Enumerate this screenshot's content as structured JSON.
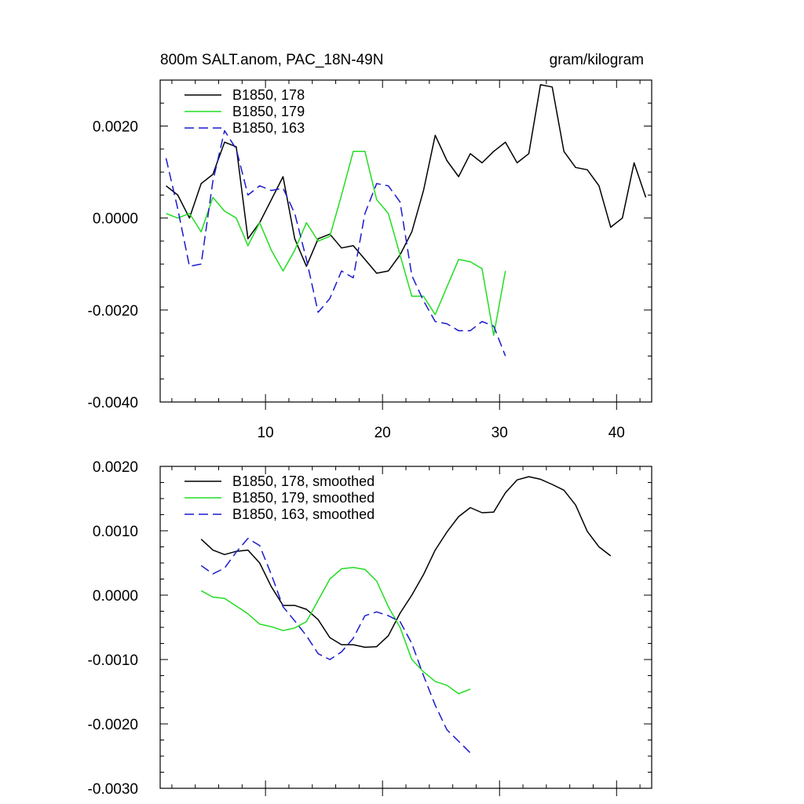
{
  "chart_data": [
    {
      "type": "line",
      "title": "800m SALT.anom, PAC_18N-49N",
      "units_label": "gram/kilogram",
      "xlim": [
        1,
        43
      ],
      "ylim": [
        -0.004,
        0.003
      ],
      "xticks": [
        10,
        20,
        30,
        40
      ],
      "yticks": [
        -0.004,
        -0.002,
        0.0,
        0.002
      ],
      "ytick_labels": [
        "-0.0040",
        "-0.0020",
        "0.0000",
        "0.0020"
      ],
      "xtick_labels": [
        "10",
        "20",
        "30",
        "40"
      ],
      "legend_position": "top-left",
      "series": [
        {
          "name": "B1850, 178",
          "color": "#000000",
          "dash": "solid",
          "x": [
            1.5,
            2.5,
            3.5,
            4.5,
            5.5,
            6.5,
            7.5,
            8.5,
            9.5,
            10.5,
            11.5,
            12.5,
            13.5,
            14.5,
            15.5,
            16.5,
            17.5,
            18.5,
            19.5,
            20.5,
            21.5,
            22.5,
            23.5,
            24.5,
            25.5,
            26.5,
            27.5,
            28.5,
            29.5,
            30.5,
            31.5,
            32.5,
            33.5,
            34.5,
            35.5,
            36.5,
            37.5,
            38.5,
            39.5,
            40.5,
            41.5,
            42.5
          ],
          "values": [
            0.0007,
            0.0005,
            0.0,
            0.00075,
            0.00095,
            0.00165,
            0.00155,
            -0.00045,
            -0.0001,
            0.0004,
            0.0009,
            -0.00045,
            -0.00105,
            -0.00045,
            -0.00035,
            -0.00065,
            -0.0006,
            -0.0009,
            -0.0012,
            -0.00115,
            -0.0008,
            -0.0003,
            0.0006,
            0.0018,
            0.00125,
            0.0009,
            0.0014,
            0.0012,
            0.00145,
            0.00165,
            0.0012,
            0.0014,
            0.0029,
            0.00285,
            0.00145,
            0.0011,
            0.00105,
            0.0007,
            -0.0002,
            0.0,
            0.0012,
            0.00045
          ]
        },
        {
          "name": "B1850, 179",
          "color": "#22dd22",
          "dash": "solid",
          "x": [
            1.5,
            2.5,
            3.5,
            4.5,
            5.5,
            6.5,
            7.5,
            8.5,
            9.5,
            10.5,
            11.5,
            12.5,
            13.5,
            14.5,
            15.5,
            16.5,
            17.5,
            18.5,
            19.5,
            20.5,
            21.5,
            22.5,
            23.5,
            24.5,
            25.5,
            26.5,
            27.5,
            28.5,
            29.5,
            30.5
          ],
          "values": [
            0.0001,
            0.0,
            0.0001,
            -0.0003,
            0.00045,
            0.00015,
            0.0,
            -0.0006,
            -0.0001,
            -0.0007,
            -0.00115,
            -0.0007,
            -0.0001,
            -0.0005,
            -0.0004,
            0.0005,
            0.00145,
            0.00145,
            0.0004,
            0.0001,
            -0.0008,
            -0.0017,
            -0.0017,
            -0.0021,
            -0.0015,
            -0.0009,
            -0.00095,
            -0.0011,
            -0.00255,
            -0.00115
          ]
        },
        {
          "name": "B1850, 163",
          "color": "#1a1acc",
          "dash": "dashed",
          "x": [
            1.5,
            2.5,
            3.5,
            4.5,
            5.5,
            6.5,
            7.5,
            8.5,
            9.5,
            10.5,
            11.5,
            12.5,
            13.5,
            14.5,
            15.5,
            16.5,
            17.5,
            18.5,
            19.5,
            20.5,
            21.5,
            22.5,
            23.5,
            24.5,
            25.5,
            26.5,
            27.5,
            28.5,
            29.5,
            30.5
          ],
          "values": [
            0.0013,
            0.0002,
            -0.00105,
            -0.001,
            0.0008,
            0.0019,
            0.0015,
            0.0005,
            0.0007,
            0.0006,
            0.00065,
            0.0001,
            -0.0009,
            -0.00205,
            -0.00175,
            -0.00115,
            -0.0013,
            0.0001,
            0.00075,
            0.0007,
            0.00035,
            -0.00125,
            -0.0018,
            -0.00225,
            -0.0023,
            -0.00245,
            -0.00245,
            -0.00225,
            -0.00235,
            -0.003
          ]
        }
      ]
    },
    {
      "type": "line",
      "title": "",
      "xlim": [
        1,
        43
      ],
      "ylim": [
        -0.003,
        0.002
      ],
      "xticks": [
        10,
        20,
        30,
        40
      ],
      "yticks": [
        -0.003,
        -0.002,
        -0.001,
        0.0,
        0.001,
        0.002
      ],
      "ytick_labels": [
        "-0.0030",
        "-0.0020",
        "-0.0010",
        "0.0000",
        "0.0010",
        "0.0020"
      ],
      "legend_position": "top-left",
      "series": [
        {
          "name": "B1850, 178, smoothed",
          "color": "#000000",
          "dash": "solid",
          "x": [
            4.5,
            5.5,
            6.5,
            7.5,
            8.5,
            9.5,
            10.5,
            11.5,
            12.5,
            13.5,
            14.5,
            15.5,
            16.5,
            17.5,
            18.5,
            19.5,
            20.5,
            21.5,
            22.5,
            23.5,
            24.5,
            25.5,
            26.5,
            27.5,
            28.5,
            29.5,
            30.5,
            31.5,
            32.5,
            33.5,
            34.5,
            35.5,
            36.5,
            37.5,
            38.5,
            39.5
          ],
          "values": [
            0.00087,
            0.0007,
            0.00063,
            0.00068,
            0.0007,
            0.0005,
            0.00013,
            -0.00016,
            -0.00016,
            -0.00022,
            -0.00038,
            -0.00066,
            -0.00077,
            -0.00077,
            -0.00081,
            -0.0008,
            -0.00063,
            -0.00028,
            0.0,
            0.00032,
            0.0007,
            0.00098,
            0.00122,
            0.00136,
            0.00128,
            0.00129,
            0.00159,
            0.00179,
            0.00184,
            0.0018,
            0.00172,
            0.00163,
            0.0014,
            0.00099,
            0.00075,
            0.00061
          ]
        },
        {
          "name": "B1850, 179, smoothed",
          "color": "#22dd22",
          "dash": "solid",
          "x": [
            4.5,
            5.5,
            6.5,
            7.5,
            8.5,
            9.5,
            10.5,
            11.5,
            12.5,
            13.5,
            14.5,
            15.5,
            16.5,
            17.5,
            18.5,
            19.5,
            20.5,
            21.5,
            22.5,
            23.5,
            24.5,
            25.5,
            26.5,
            27.5
          ],
          "values": [
            7e-05,
            -3e-05,
            -5e-05,
            -0.00017,
            -0.00029,
            -0.00045,
            -0.00049,
            -0.00055,
            -0.00051,
            -0.00041,
            -8e-05,
            0.00025,
            0.00041,
            0.00043,
            0.0004,
            0.00022,
            -0.00018,
            -0.0005,
            -0.001,
            -0.00119,
            -0.00134,
            -0.0014,
            -0.00153,
            -0.00146
          ]
        },
        {
          "name": "B1850, 163, smoothed",
          "color": "#1a1acc",
          "dash": "dashed",
          "x": [
            4.5,
            5.5,
            6.5,
            7.5,
            8.5,
            9.5,
            10.5,
            11.5,
            12.5,
            13.5,
            14.5,
            15.5,
            16.5,
            17.5,
            18.5,
            19.5,
            20.5,
            21.5,
            22.5,
            23.5,
            24.5,
            25.5,
            26.5,
            27.5
          ],
          "values": [
            0.00046,
            0.00033,
            0.00042,
            0.00067,
            0.00088,
            0.00077,
            0.00032,
            -0.00018,
            -0.0004,
            -0.00063,
            -0.00091,
            -0.001,
            -0.00088,
            -0.00067,
            -0.00032,
            -0.00026,
            -0.00032,
            -0.00041,
            -0.00075,
            -0.00125,
            -0.00171,
            -0.00209,
            -0.00227,
            -0.00245
          ]
        }
      ]
    }
  ]
}
